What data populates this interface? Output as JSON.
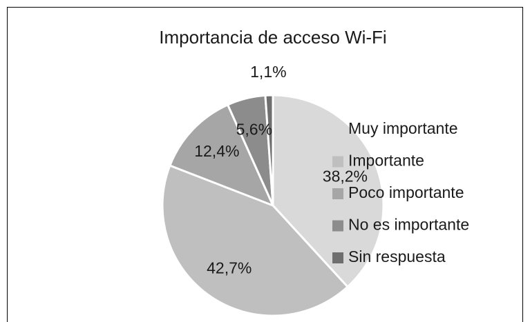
{
  "chart_data": {
    "type": "pie",
    "title": "Importancia de acceso Wi-Fi",
    "categories": [
      "Muy importante",
      "Importante",
      "Poco importante",
      "No es importante",
      "Sin respuesta"
    ],
    "values": [
      38.2,
      42.7,
      12.4,
      5.6,
      1.1
    ],
    "value_labels": [
      "38,2%",
      "42,7%",
      "12,4%",
      "5,6%",
      "1,1%"
    ],
    "colors": [
      "#d9d9d9",
      "#bfbfbf",
      "#a6a6a6",
      "#8c8c8c",
      "#6f6f6f"
    ],
    "legend": "right"
  }
}
